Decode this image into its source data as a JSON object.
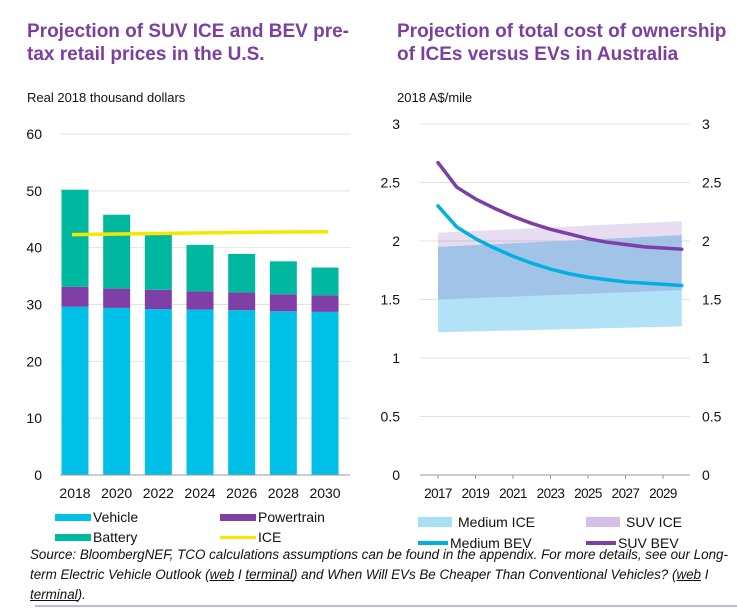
{
  "colors": {
    "title": "#7b3fa0",
    "vehicle": "#00c0e8",
    "powertrain": "#7f3fa6",
    "battery": "#00b8a0",
    "ice": "#f5e800",
    "medium_ice": "#a8dff5",
    "suv_ice": "#d6bfe6",
    "medium_bev": "#00b0e0",
    "suv_bev": "#7b3fa6",
    "grid": "#e2e2e2"
  },
  "chart_data": [
    {
      "type": "bar",
      "stacked": true,
      "title": "Projection of SUV ICE and BEV pre-tax retail prices in the U.S.",
      "ylabel": "Real 2018 thousand dollars",
      "ylim": [
        0,
        60
      ],
      "yticks": [
        "0",
        "10",
        "20",
        "30",
        "40",
        "50",
        "60"
      ],
      "grid": true,
      "legend": "bottom",
      "categories": [
        "2018",
        "2020",
        "2022",
        "2024",
        "2026",
        "2028",
        "2030"
      ],
      "series": [
        {
          "name": "Vehicle",
          "values": [
            29.6,
            29.4,
            29.2,
            29.1,
            29.0,
            28.8,
            28.7
          ]
        },
        {
          "name": "Powertrain",
          "values": [
            3.5,
            3.4,
            3.4,
            3.2,
            3.1,
            3.0,
            2.9
          ]
        },
        {
          "name": "Battery",
          "values": [
            17.1,
            13.0,
            9.8,
            8.2,
            6.8,
            5.8,
            4.9
          ]
        }
      ],
      "line_series": {
        "name": "ICE",
        "values": [
          42.3,
          42.4,
          42.5,
          42.6,
          42.7,
          42.75,
          42.8
        ]
      }
    },
    {
      "type": "line",
      "title": "Projection of total cost of ownership of ICEs versus EVs in Australia",
      "ylabel": "2018 A$/mile",
      "ylim": [
        0,
        3
      ],
      "yticks": [
        "0",
        "0.5",
        "1",
        "1.5",
        "2",
        "2.5",
        "3"
      ],
      "grid": true,
      "legend": "bottom",
      "x": [
        2017,
        2018,
        2019,
        2020,
        2021,
        2022,
        2023,
        2024,
        2025,
        2026,
        2027,
        2028,
        2029,
        2030
      ],
      "xticks": [
        "2017",
        "2019",
        "2021",
        "2023",
        "2025",
        "2027",
        "2029"
      ],
      "bands": [
        {
          "name": "Medium ICE",
          "x": [
            2017,
            2030
          ],
          "low": [
            1.22,
            1.27
          ],
          "high": [
            1.95,
            2.05
          ]
        },
        {
          "name": "SUV ICE",
          "x": [
            2017,
            2030
          ],
          "low": [
            1.5,
            1.58
          ],
          "high": [
            2.07,
            2.17
          ]
        }
      ],
      "series": [
        {
          "name": "Medium BEV",
          "values": [
            2.3,
            2.12,
            2.02,
            1.94,
            1.87,
            1.81,
            1.76,
            1.72,
            1.69,
            1.67,
            1.65,
            1.64,
            1.63,
            1.62
          ]
        },
        {
          "name": "SUV BEV",
          "values": [
            2.67,
            2.46,
            2.36,
            2.28,
            2.21,
            2.15,
            2.1,
            2.06,
            2.02,
            1.99,
            1.97,
            1.95,
            1.94,
            1.93
          ]
        }
      ]
    }
  ],
  "footnote": {
    "segments": [
      {
        "text": "Source: BloombergNEF, TCO calculations assumptions can be found in the appendix. For more details, see our Long-term Electric Vehicle Outlook (",
        "link": false
      },
      {
        "text": "web",
        "link": true
      },
      {
        "text": " I ",
        "link": false
      },
      {
        "text": "terminal",
        "link": true
      },
      {
        "text": ") and When Will EVs Be Cheaper Than Conventional Vehicles? (",
        "link": false
      },
      {
        "text": "web",
        "link": true
      },
      {
        "text": " I ",
        "link": false
      },
      {
        "text": "terminal",
        "link": true
      },
      {
        "text": ").",
        "link": false
      }
    ]
  }
}
